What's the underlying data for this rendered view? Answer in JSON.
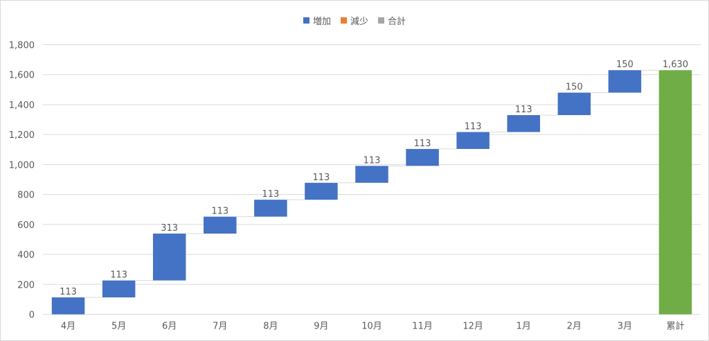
{
  "colors": {
    "increase": "#4472c4",
    "decrease": "#ed7d31",
    "total": "#70ad47",
    "total_legend": "#a5a5a5",
    "gridline": "#d9d9d9",
    "axis_text": "#595959",
    "connector": "#d9d9d9"
  },
  "legend": [
    {
      "label": "増加",
      "color": "#4472c4"
    },
    {
      "label": "減少",
      "color": "#ed7d31"
    },
    {
      "label": "合計",
      "color": "#a5a5a5"
    }
  ],
  "chart_data": {
    "type": "waterfall",
    "categories": [
      "4月",
      "5月",
      "6月",
      "7月",
      "8月",
      "9月",
      "10月",
      "11月",
      "12月",
      "1月",
      "2月",
      "3月",
      "累計"
    ],
    "values": [
      113,
      113,
      313,
      113,
      113,
      113,
      113,
      113,
      113,
      113,
      150,
      150,
      1630
    ],
    "value_labels": [
      "113",
      "113",
      "313",
      "113",
      "113",
      "113",
      "113",
      "113",
      "113",
      "113",
      "150",
      "150",
      "1,630"
    ],
    "kinds": [
      "increase",
      "increase",
      "increase",
      "increase",
      "increase",
      "increase",
      "increase",
      "increase",
      "increase",
      "increase",
      "increase",
      "increase",
      "total"
    ],
    "title": "",
    "xlabel": "",
    "ylabel": "",
    "ylim": [
      0,
      1800
    ],
    "yticks": [
      0,
      200,
      400,
      600,
      800,
      1000,
      1200,
      1400,
      1600,
      1800
    ],
    "ytick_labels": [
      "0",
      "200",
      "400",
      "600",
      "800",
      "1,000",
      "1,200",
      "1,400",
      "1,600",
      "1,800"
    ],
    "grid": true,
    "legend_position": "top"
  }
}
